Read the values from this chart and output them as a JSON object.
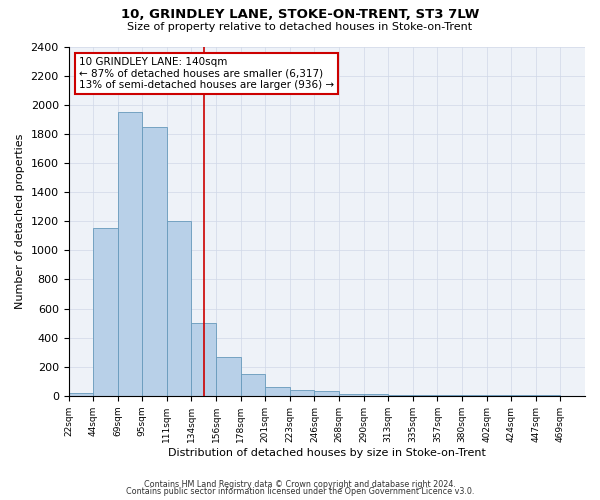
{
  "title_line1": "10, GRINDLEY LANE, STOKE-ON-TRENT, ST3 7LW",
  "title_line2": "Size of property relative to detached houses in Stoke-on-Trent",
  "xlabel": "Distribution of detached houses by size in Stoke-on-Trent",
  "ylabel": "Number of detached properties",
  "bin_labels": [
    "22sqm",
    "44sqm",
    "69sqm",
    "95sqm",
    "111sqm",
    "134sqm",
    "156sqm",
    "178sqm",
    "201sqm",
    "223sqm",
    "246sqm",
    "268sqm",
    "290sqm",
    "313sqm",
    "335sqm",
    "357sqm",
    "380sqm",
    "402sqm",
    "424sqm",
    "447sqm",
    "469sqm"
  ],
  "bar_heights": [
    22,
    1150,
    1950,
    1850,
    1200,
    500,
    270,
    150,
    60,
    40,
    30,
    10,
    10,
    5,
    5,
    3,
    3,
    3,
    3,
    3,
    0
  ],
  "bar_color": "#b8d0e8",
  "bar_edge_color": "#6699bb",
  "grid_color": "#d0d8e8",
  "vline_x_bin": 5,
  "vline_color": "#cc0000",
  "annotation_line1": "10 GRINDLEY LANE: 140sqm",
  "annotation_line2": "← 87% of detached houses are smaller (6,317)",
  "annotation_line3": "13% of semi-detached houses are larger (936) →",
  "annotation_box_color": "#cc0000",
  "ylim": [
    0,
    2400
  ],
  "yticks": [
    0,
    200,
    400,
    600,
    800,
    1000,
    1200,
    1400,
    1600,
    1800,
    2000,
    2200,
    2400
  ],
  "footnote1": "Contains HM Land Registry data © Crown copyright and database right 2024.",
  "footnote2": "Contains public sector information licensed under the Open Government Licence v3.0.",
  "background_color": "#eef2f8",
  "fig_background": "#ffffff"
}
